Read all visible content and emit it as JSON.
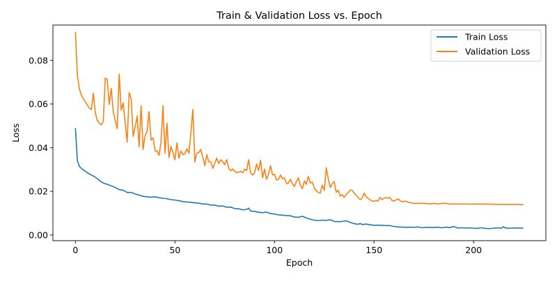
{
  "chart_data": {
    "type": "line",
    "title": "Train & Validation Loss vs. Epoch",
    "xlabel": "Epoch",
    "ylabel": "Loss",
    "xlim": [
      -11.3,
      236.3
    ],
    "ylim": [
      -0.0026,
      0.0962
    ],
    "xticks": [
      0,
      50,
      100,
      150,
      200
    ],
    "yticks": [
      0.0,
      0.02,
      0.04,
      0.06,
      0.08
    ],
    "ytick_labels": [
      "0.00",
      "0.02",
      "0.04",
      "0.06",
      "0.08"
    ],
    "legend_position": "top-right",
    "series": [
      {
        "name": "Train Loss",
        "color": "#1f77b4",
        "x": [
          0,
          1,
          2,
          3,
          4,
          5,
          6,
          8,
          10,
          12,
          14,
          16,
          18,
          20,
          22,
          24,
          26,
          28,
          30,
          32,
          34,
          36,
          38,
          40,
          42,
          44,
          46,
          48,
          50,
          52,
          54,
          56,
          58,
          60,
          62,
          64,
          66,
          68,
          70,
          72,
          74,
          76,
          78,
          80,
          82,
          84,
          86,
          87,
          88,
          90,
          92,
          94,
          96,
          98,
          100,
          102,
          104,
          106,
          108,
          110,
          112,
          114,
          116,
          118,
          120,
          122,
          124,
          126,
          128,
          130,
          132,
          134,
          136,
          138,
          140,
          142,
          143,
          144,
          146,
          148,
          150,
          152,
          154,
          156,
          158,
          160,
          162,
          164,
          166,
          168,
          170,
          172,
          174,
          176,
          178,
          180,
          182,
          184,
          186,
          188,
          190,
          192,
          194,
          196,
          198,
          200,
          202,
          204,
          206,
          208,
          210,
          212,
          214,
          215,
          216,
          218,
          220,
          222,
          224,
          225
        ],
        "values": [
          0.049,
          0.034,
          0.0315,
          0.0305,
          0.0298,
          0.0292,
          0.0285,
          0.0275,
          0.0265,
          0.025,
          0.0238,
          0.0232,
          0.0225,
          0.0218,
          0.0208,
          0.0205,
          0.0195,
          0.0195,
          0.0188,
          0.0183,
          0.0177,
          0.0175,
          0.0173,
          0.0175,
          0.0171,
          0.0168,
          0.0166,
          0.0162,
          0.016,
          0.0157,
          0.0153,
          0.0151,
          0.015,
          0.0147,
          0.0146,
          0.0142,
          0.0142,
          0.0137,
          0.0137,
          0.0132,
          0.0133,
          0.0127,
          0.0128,
          0.0121,
          0.012,
          0.0115,
          0.0117,
          0.0123,
          0.011,
          0.0108,
          0.0104,
          0.0102,
          0.0105,
          0.0098,
          0.0096,
          0.0092,
          0.0091,
          0.0089,
          0.0088,
          0.0082,
          0.0081,
          0.0086,
          0.0078,
          0.0072,
          0.0068,
          0.0066,
          0.0068,
          0.0067,
          0.007,
          0.0062,
          0.0061,
          0.0062,
          0.0065,
          0.0058,
          0.0052,
          0.0049,
          0.0053,
          0.0048,
          0.005,
          0.0047,
          0.0044,
          0.0045,
          0.0044,
          0.0043,
          0.0043,
          0.0039,
          0.0037,
          0.0036,
          0.0035,
          0.0036,
          0.0035,
          0.0037,
          0.0033,
          0.0035,
          0.0035,
          0.0034,
          0.0036,
          0.0033,
          0.0036,
          0.0034,
          0.0039,
          0.0032,
          0.0033,
          0.0032,
          0.0033,
          0.0031,
          0.003,
          0.0033,
          0.003,
          0.0029,
          0.0031,
          0.0033,
          0.0031,
          0.0038,
          0.0032,
          0.0031,
          0.0032,
          0.0032,
          0.0031,
          0.0032
        ]
      },
      {
        "name": "Validation Loss",
        "color": "#ff7f0e",
        "x": [
          0,
          1,
          2,
          3,
          4,
          5,
          6,
          7,
          8,
          9,
          10,
          11,
          12,
          13,
          14,
          15,
          16,
          17,
          18,
          19,
          20,
          21,
          22,
          23,
          24,
          25,
          26,
          27,
          28,
          29,
          30,
          31,
          32,
          33,
          34,
          35,
          36,
          37,
          38,
          39,
          40,
          41,
          42,
          43,
          44,
          45,
          46,
          47,
          48,
          49,
          50,
          51,
          52,
          53,
          54,
          55,
          56,
          57,
          58,
          59,
          60,
          61,
          62,
          63,
          64,
          65,
          66,
          67,
          68,
          69,
          70,
          71,
          72,
          73,
          74,
          75,
          76,
          77,
          78,
          79,
          80,
          81,
          82,
          83,
          84,
          85,
          86,
          87,
          88,
          89,
          90,
          91,
          92,
          93,
          94,
          95,
          96,
          97,
          98,
          99,
          100,
          101,
          102,
          103,
          104,
          105,
          106,
          107,
          108,
          109,
          110,
          111,
          112,
          113,
          114,
          115,
          116,
          117,
          118,
          119,
          120,
          121,
          122,
          123,
          124,
          125,
          126,
          127,
          128,
          129,
          130,
          131,
          132,
          133,
          134,
          135,
          136,
          137,
          138,
          139,
          140,
          141,
          142,
          143,
          144,
          145,
          146,
          147,
          148,
          149,
          150,
          151,
          152,
          153,
          154,
          155,
          156,
          157,
          158,
          159,
          160,
          162,
          164,
          166,
          168,
          170,
          172,
          174,
          176,
          178,
          180,
          182,
          184,
          186,
          188,
          190,
          192,
          194,
          196,
          198,
          200,
          202,
          204,
          206,
          208,
          210,
          212,
          214,
          216,
          218,
          220,
          222,
          224,
          225
        ],
        "values": [
          0.093,
          0.073,
          0.067,
          0.064,
          0.0625,
          0.061,
          0.0595,
          0.058,
          0.0575,
          0.065,
          0.056,
          0.0525,
          0.0512,
          0.0505,
          0.052,
          0.072,
          0.0712,
          0.0598,
          0.0672,
          0.0565,
          0.0525,
          0.0488,
          0.0738,
          0.0572,
          0.0605,
          0.0515,
          0.0425,
          0.0652,
          0.0625,
          0.0452,
          0.0495,
          0.0545,
          0.0405,
          0.0592,
          0.0392,
          0.0455,
          0.0475,
          0.0565,
          0.0435,
          0.0445,
          0.0385,
          0.0385,
          0.0365,
          0.0425,
          0.0592,
          0.0375,
          0.0512,
          0.0355,
          0.0405,
          0.0378,
          0.0345,
          0.0422,
          0.0352,
          0.0385,
          0.0368,
          0.0372,
          0.0395,
          0.0375,
          0.0468,
          0.0575,
          0.0335,
          0.0375,
          0.0378,
          0.0392,
          0.0355,
          0.0318,
          0.0368,
          0.0335,
          0.0335,
          0.0305,
          0.0328,
          0.0352,
          0.0328,
          0.0345,
          0.0335,
          0.0322,
          0.0345,
          0.0305,
          0.0295,
          0.0302,
          0.0292,
          0.0285,
          0.0288,
          0.0292,
          0.0285,
          0.0302,
          0.0295,
          0.0345,
          0.0285,
          0.0275,
          0.0285,
          0.0325,
          0.0295,
          0.0342,
          0.0262,
          0.0302,
          0.0255,
          0.0278,
          0.0318,
          0.0275,
          0.0278,
          0.0252,
          0.0255,
          0.0275,
          0.0258,
          0.0262,
          0.0235,
          0.0238,
          0.0255,
          0.0235,
          0.0222,
          0.0245,
          0.0262,
          0.0228,
          0.0212,
          0.0248,
          0.0232,
          0.0268,
          0.0238,
          0.0242,
          0.0215,
          0.0202,
          0.0195,
          0.0192,
          0.0228,
          0.0205,
          0.0308,
          0.0258,
          0.0218,
          0.0235,
          0.0245,
          0.0195,
          0.0205,
          0.0178,
          0.0185,
          0.0172,
          0.0185,
          0.0195,
          0.0205,
          0.0205,
          0.0192,
          0.0182,
          0.0172,
          0.0162,
          0.0168,
          0.0192,
          0.0175,
          0.0168,
          0.0162,
          0.0155,
          0.0155,
          0.0158,
          0.0155,
          0.0172,
          0.0162,
          0.0168,
          0.0172,
          0.0168,
          0.0172,
          0.0158,
          0.0155,
          0.0165,
          0.0152,
          0.0155,
          0.0148,
          0.0145,
          0.0145,
          0.0145,
          0.0145,
          0.0142,
          0.0145,
          0.0142,
          0.0145,
          0.0145,
          0.0142,
          0.0142,
          0.0142,
          0.0142,
          0.0142,
          0.0141,
          0.0142,
          0.0141,
          0.0142,
          0.0141,
          0.0141,
          0.0141,
          0.014,
          0.014,
          0.014,
          0.014,
          0.014,
          0.014,
          0.0139,
          0.0139
        ]
      }
    ]
  }
}
